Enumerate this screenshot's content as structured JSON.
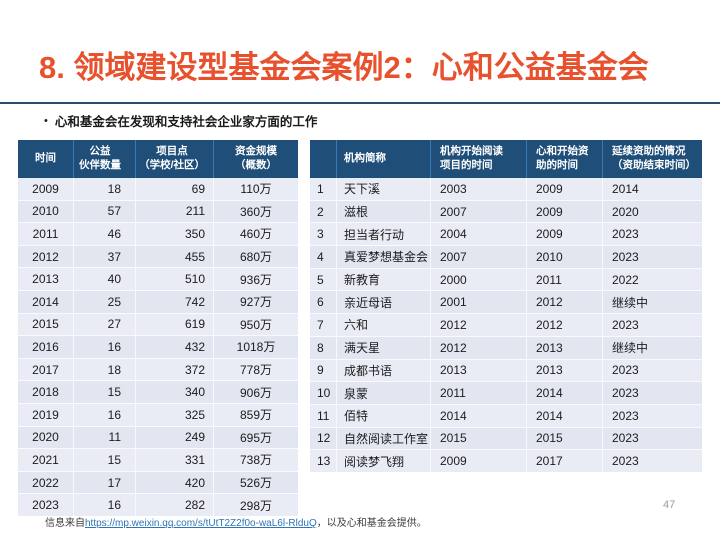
{
  "slide": {
    "title": "8. 领域建设型基金会案例2：心和公益基金会",
    "bullet": "心和基金会在发现和支持社会企业家方面的工作",
    "page_number": "47",
    "footer": {
      "prefix": "信息来自",
      "link": "https://mp.weixin.qq.com/s/tUtT2Z2f0o-waL6l-RlduQ",
      "suffix": "，以及心和基金会提供。"
    }
  },
  "colors": {
    "title": "#E8512D",
    "header_bg": "#1F4E79",
    "header_divider": "#3878B4",
    "row_odd": "#E9EBF5",
    "row_even": "#E2E6F1",
    "link": "#2E75B6"
  },
  "left_table": {
    "headers": [
      "时间",
      "公益\n伙伴数量",
      "项目点\n（学校/社区）",
      "资金规模\n（概数）"
    ],
    "rows": [
      [
        "2009",
        "18",
        "69",
        "110万"
      ],
      [
        "2010",
        "57",
        "211",
        "360万"
      ],
      [
        "2011",
        "46",
        "350",
        "460万"
      ],
      [
        "2012",
        "37",
        "455",
        "680万"
      ],
      [
        "2013",
        "40",
        "510",
        "936万"
      ],
      [
        "2014",
        "25",
        "742",
        "927万"
      ],
      [
        "2015",
        "27",
        "619",
        "950万"
      ],
      [
        "2016",
        "16",
        "432",
        "1018万"
      ],
      [
        "2017",
        "18",
        "372",
        "778万"
      ],
      [
        "2018",
        "15",
        "340",
        "906万"
      ],
      [
        "2019",
        "16",
        "325",
        "859万"
      ],
      [
        "2020",
        "11",
        "249",
        "695万"
      ],
      [
        "2021",
        "15",
        "331",
        "738万"
      ],
      [
        "2022",
        "17",
        "420",
        "526万"
      ],
      [
        "2023",
        "16",
        "282",
        "298万"
      ]
    ]
  },
  "right_table": {
    "headers": [
      "",
      "机构简称",
      "机构开始阅读\n项目的时间",
      "心和开始资\n助的时间",
      "延续资助的情况\n（资助结束时间）"
    ],
    "rows": [
      [
        "1",
        "天下溪",
        "2003",
        "2009",
        "2014"
      ],
      [
        "2",
        "滋根",
        "2007",
        "2009",
        "2020"
      ],
      [
        "3",
        "担当者行动",
        "2004",
        "2009",
        "2023"
      ],
      [
        "4",
        "真爱梦想基金会",
        "2007",
        "2010",
        "2023"
      ],
      [
        "5",
        "新教育",
        "2000",
        "2011",
        "2022"
      ],
      [
        "6",
        "亲近母语",
        "2001",
        "2012",
        "继续中"
      ],
      [
        "7",
        "六和",
        "2012",
        "2012",
        "2023"
      ],
      [
        "8",
        "满天星",
        "2012",
        "2013",
        "继续中"
      ],
      [
        "9",
        "成都书语",
        "2013",
        "2013",
        "2023"
      ],
      [
        "10",
        "泉蒙",
        "2011",
        "2014",
        "2023"
      ],
      [
        "11",
        "佰特",
        "2014",
        "2014",
        "2023"
      ],
      [
        "12",
        "自然阅读工作室",
        "2015",
        "2015",
        "2023"
      ],
      [
        "13",
        "阅读梦飞翔",
        "2009",
        "2017",
        "2023"
      ]
    ]
  }
}
